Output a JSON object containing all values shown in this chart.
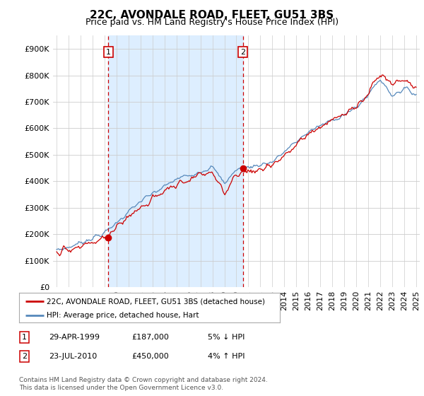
{
  "title": "22C, AVONDALE ROAD, FLEET, GU51 3BS",
  "subtitle": "Price paid vs. HM Land Registry's House Price Index (HPI)",
  "ylabel_ticks": [
    "£0",
    "£100K",
    "£200K",
    "£300K",
    "£400K",
    "£500K",
    "£600K",
    "£700K",
    "£800K",
    "£900K"
  ],
  "ytick_values": [
    0,
    100000,
    200000,
    300000,
    400000,
    500000,
    600000,
    700000,
    800000,
    900000
  ],
  "ylim": [
    0,
    950000
  ],
  "xlim_start": 1994.7,
  "xlim_end": 2025.3,
  "marker1_x": 1999.32,
  "marker1_y": 187000,
  "marker2_x": 2010.55,
  "marker2_y": 450000,
  "annotation1": [
    "29-APR-1999",
    "£187,000",
    "5% ↓ HPI"
  ],
  "annotation2": [
    "23-JUL-2010",
    "£450,000",
    "4% ↑ HPI"
  ],
  "legend_line1": "22C, AVONDALE ROAD, FLEET, GU51 3BS (detached house)",
  "legend_line2": "HPI: Average price, detached house, Hart",
  "footer": "Contains HM Land Registry data © Crown copyright and database right 2024.\nThis data is licensed under the Open Government Licence v3.0.",
  "line_color_red": "#cc0000",
  "line_color_blue": "#5588bb",
  "shade_color": "#ddeeff",
  "bg_color": "#ffffff",
  "grid_color": "#cccccc",
  "title_fontsize": 11,
  "subtitle_fontsize": 9,
  "tick_fontsize": 8
}
